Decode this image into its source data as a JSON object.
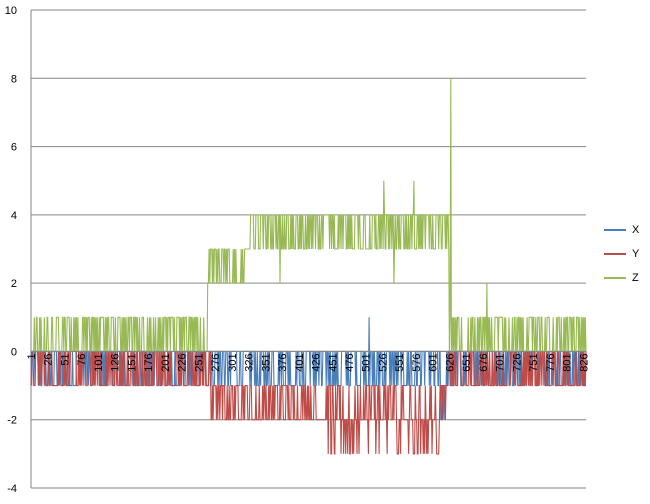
{
  "chart_data": {
    "type": "line",
    "title": "",
    "xlabel": "",
    "ylabel": "",
    "ylim": [
      -4,
      10
    ],
    "yticks": [
      -4,
      -2,
      0,
      2,
      4,
      6,
      8,
      10
    ],
    "xlim": [
      1,
      830
    ],
    "xtick_labels": [
      "1",
      "26",
      "51",
      "76",
      "101",
      "126",
      "151",
      "176",
      "201",
      "226",
      "251",
      "276",
      "301",
      "326",
      "351",
      "376",
      "401",
      "426",
      "451",
      "476",
      "501",
      "526",
      "551",
      "576",
      "601",
      "626",
      "651",
      "676",
      "701",
      "726",
      "751",
      "776",
      "801",
      "826"
    ],
    "grid": true,
    "legend_position": "right",
    "series": [
      {
        "name": "X",
        "color": "#4a7ebb",
        "note_pattern": "oscillates between 0 and -1 for most samples; single spike to 1 near sample 506; brief dip near 620",
        "values_sampled_every_25": [
          -1,
          -1,
          -1,
          -1,
          -1,
          -1,
          -1,
          -1,
          -1,
          -1,
          -1,
          -1,
          -1,
          -1,
          -1,
          -1,
          -1,
          -1,
          -1,
          -1,
          1,
          -1,
          -1,
          -1,
          -1,
          -1,
          -1,
          -1,
          -1,
          -1,
          -1,
          -1,
          -1,
          -1
        ]
      },
      {
        "name": "Y",
        "color": "#be4b48",
        "note_pattern": "oscillates 0/-1 at start and end; drops to -2/-3 between samples ~270 and ~620",
        "values_sampled_every_25": [
          -1,
          -1,
          -1,
          -1,
          -1,
          -1,
          -1,
          -1,
          -1,
          -1,
          -1,
          -2,
          -2,
          -2,
          -2,
          -2,
          -2,
          -3,
          -3,
          -3,
          -3,
          -3,
          -3,
          -3,
          -3,
          -1,
          -1,
          -1,
          -1,
          -1,
          -1,
          -1,
          -1,
          -1
        ]
      },
      {
        "name": "Z",
        "color": "#98b954",
        "note_pattern": "oscillates 0/1 until ~265; 2/3 until ~320; 3/4 until ~625 with spikes to 5 at ~528 and ~573; spike to 8 at ~628; then 0/1 with a spike to 2 near ~680",
        "values_sampled_every_25": [
          1,
          1,
          1,
          1,
          1,
          1,
          1,
          1,
          1,
          1,
          1,
          3,
          3,
          4,
          4,
          4,
          4,
          4,
          4,
          4,
          4,
          5,
          4,
          5,
          4,
          8,
          1,
          2,
          1,
          1,
          1,
          1,
          1,
          1
        ]
      }
    ]
  }
}
